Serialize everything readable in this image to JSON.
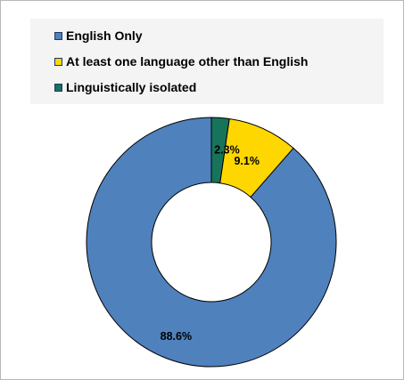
{
  "chart_data": {
    "type": "pie",
    "donut": true,
    "title": "",
    "categories": [
      "English Only",
      "At least one language other than English",
      "Linguistically isolated"
    ],
    "values": [
      88.6,
      9.1,
      2.3
    ],
    "value_labels": [
      "88.6%",
      "9.1%",
      "2.3%"
    ],
    "colors": [
      "#4f81bd",
      "#ffd700",
      "#17735a"
    ],
    "legend_position": "top",
    "legend": [
      {
        "label": "English Only",
        "color": "#4f81bd"
      },
      {
        "label": "At least one language other than English",
        "color": "#ffd700"
      },
      {
        "label": "Linguistically isolated",
        "color": "#17735a"
      }
    ]
  }
}
